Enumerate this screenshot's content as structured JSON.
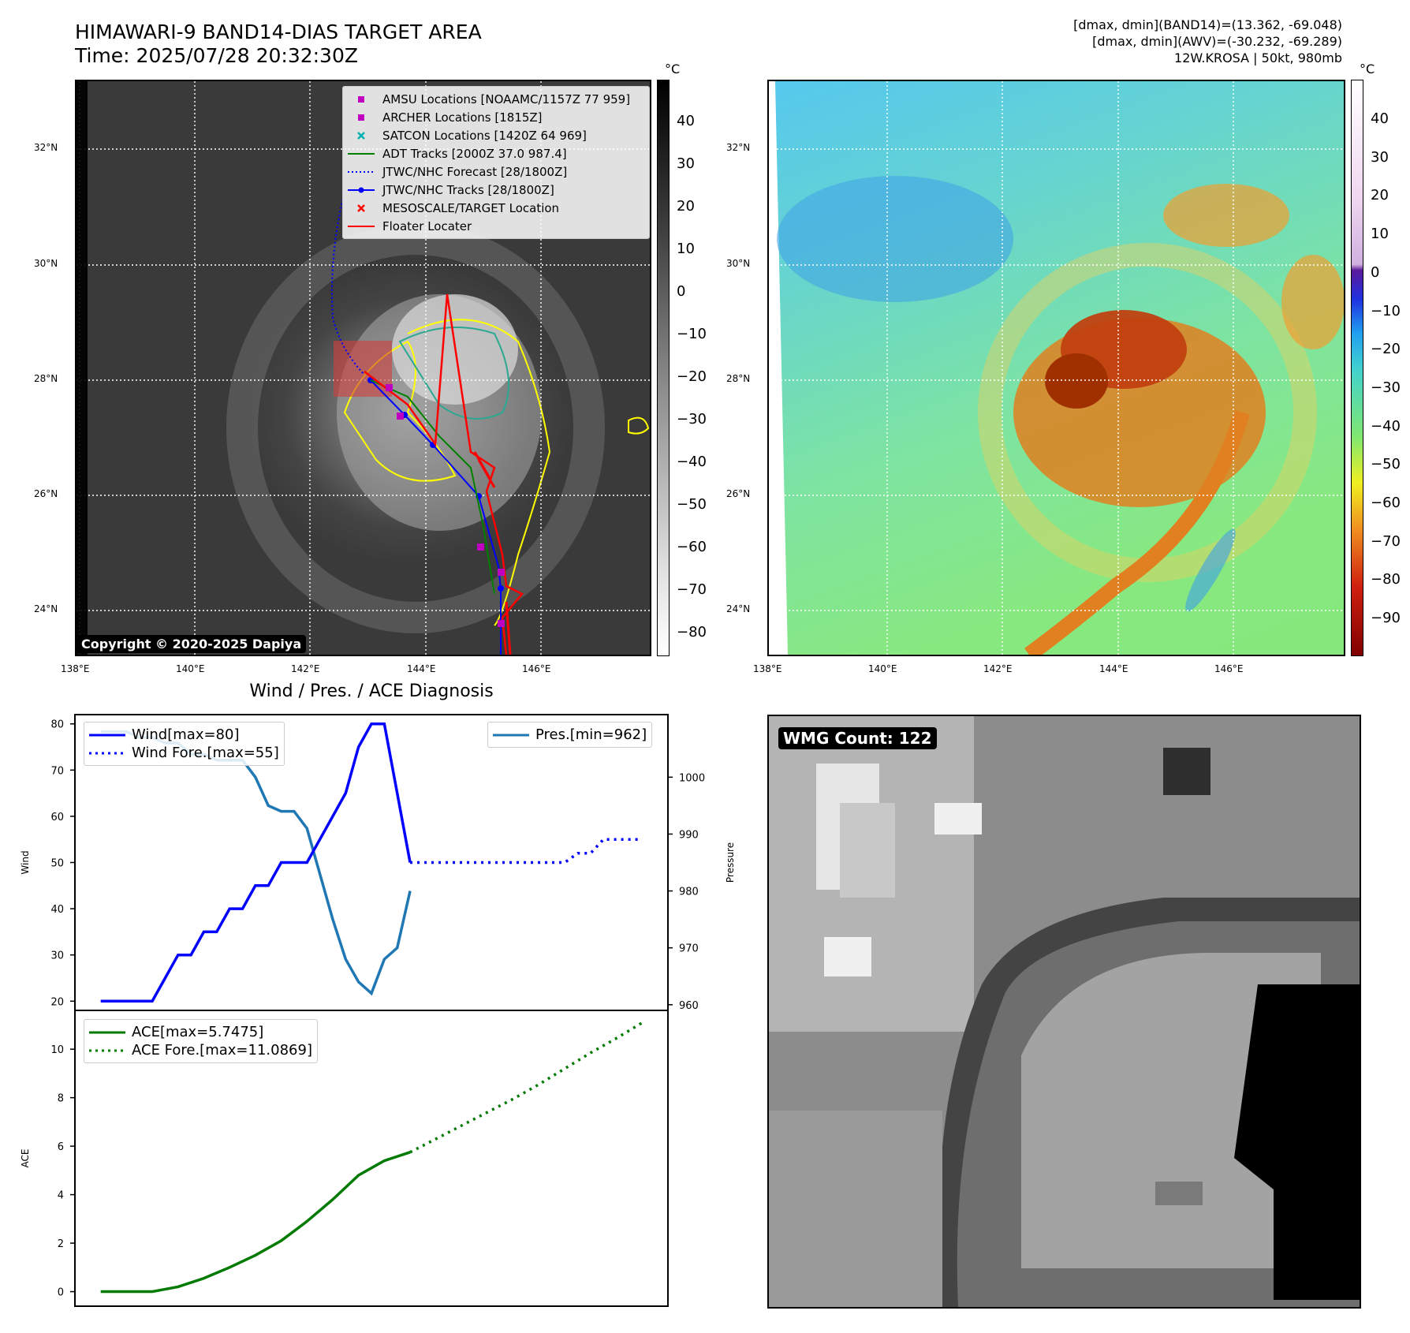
{
  "header": {
    "title_line1": "HIMAWARI-9 BAND14-DIAS TARGET AREA",
    "title_line2": "Time: 2025/07/28 20:32:30Z",
    "info_line1": "[dmax, dmin](BAND14)=(13.362, -69.048)",
    "info_line2": "[dmax, dmin](AWV)=(-30.232, -69.289)",
    "info_line3": "12W.KROSA | 50kt, 980mb"
  },
  "colorbar_unit": "°C",
  "colorbar1_ticks": [
    "40",
    "30",
    "20",
    "10",
    "0",
    "−10",
    "−20",
    "−30",
    "−40",
    "−50",
    "−60",
    "−70",
    "−80"
  ],
  "colorbar2_ticks": [
    "40",
    "30",
    "20",
    "10",
    "0",
    "−10",
    "−20",
    "−30",
    "−40",
    "−50",
    "−60",
    "−70",
    "−80",
    "−90"
  ],
  "map_lat_ticks": [
    "32°N",
    "30°N",
    "28°N",
    "26°N",
    "24°N"
  ],
  "map_lon_ticks": [
    "138°E",
    "140°E",
    "142°E",
    "144°E",
    "146°E"
  ],
  "copyright": "Copyright © 2020-2025 Dapiya",
  "map_legend": [
    {
      "label": "AMSU Locations [NOAAMC/1157Z 77 959]",
      "marker": "square",
      "color": "#c000c0"
    },
    {
      "label": "ARCHER Locations [1815Z]",
      "marker": "square",
      "color": "#c000c0"
    },
    {
      "label": "SATCON Locations [1420Z 64 969]",
      "marker": "x",
      "color": "#00b0b0"
    },
    {
      "label": "ADT Tracks [2000Z 37.0 987.4]",
      "marker": "line",
      "color": "#008000"
    },
    {
      "label": "JTWC/NHC Forecast [28/1800Z]",
      "marker": "dotted",
      "color": "#0000ff"
    },
    {
      "label": "JTWC/NHC Tracks [28/1800Z]",
      "marker": "line-dot",
      "color": "#0000ff"
    },
    {
      "label": "MESOSCALE/TARGET Location",
      "marker": "x",
      "color": "#ff0000"
    },
    {
      "label": "Floater Locater",
      "marker": "line",
      "color": "#ff0000"
    }
  ],
  "diag_title": "Wind / Pres. / ACE Diagnosis",
  "wmg_label": "WMG Count: 122",
  "colors": {
    "wind": "#0000ff",
    "pres": "#1f77b4",
    "ace": "#007a00",
    "jtwc": "#0000ff",
    "adt": "#008000",
    "floater": "#ff0000"
  },
  "chart_data": [
    {
      "type": "line",
      "title": "",
      "ylabel": "Wind",
      "ylim": [
        18,
        82
      ],
      "yticks": [
        20,
        30,
        40,
        50,
        60,
        70,
        80
      ],
      "series": [
        {
          "name": "Wind[max=80]",
          "style": "solid",
          "x": [
            0,
            1,
            2,
            2.5,
            3,
            3.5,
            4,
            4.5,
            5,
            5.5,
            6,
            6.5,
            7,
            7.5,
            8,
            8.5,
            9,
            9.5,
            10,
            10.5,
            11,
            11.5,
            12
          ],
          "values": [
            20,
            20,
            20,
            25,
            30,
            30,
            35,
            35,
            40,
            40,
            45,
            45,
            50,
            50,
            50,
            55,
            60,
            65,
            75,
            80,
            80,
            65,
            50
          ]
        },
        {
          "name": "Wind Fore.[max=55]",
          "style": "dotted",
          "x": [
            12,
            14,
            16,
            18,
            18.5,
            19,
            19.5,
            20,
            21
          ],
          "values": [
            50,
            50,
            50,
            50,
            52,
            52,
            55,
            55,
            55
          ]
        }
      ]
    },
    {
      "type": "line",
      "title": "",
      "ylabel": "Pressure",
      "ylim": [
        959,
        1011
      ],
      "yticks": [
        960,
        970,
        980,
        990,
        1000
      ],
      "series": [
        {
          "name": "Pres.[min=962]",
          "style": "solid",
          "x": [
            0,
            1,
            1.5,
            2,
            2.5,
            3,
            3.5,
            4,
            4.5,
            5,
            5.5,
            6,
            6.5,
            7,
            7.5,
            8,
            8.5,
            9,
            9.5,
            10,
            10.5,
            11,
            11.5,
            12
          ],
          "values": [
            1008,
            1008,
            1007,
            1007,
            1006,
            1006,
            1004,
            1004,
            1003,
            1003,
            1003,
            1000,
            995,
            994,
            994,
            991,
            983,
            975,
            968,
            964,
            962,
            968,
            970,
            980
          ]
        }
      ]
    },
    {
      "type": "line",
      "title": "",
      "ylabel": "ACE",
      "ylim": [
        -0.6,
        11.6
      ],
      "yticks": [
        0,
        2,
        4,
        6,
        8,
        10
      ],
      "series": [
        {
          "name": "ACE[max=5.7475]",
          "style": "solid",
          "x": [
            0,
            1,
            2,
            3,
            4,
            5,
            6,
            7,
            8,
            9,
            10,
            11,
            12
          ],
          "values": [
            0,
            0,
            0,
            0.2,
            0.55,
            1.0,
            1.5,
            2.1,
            2.9,
            3.8,
            4.8,
            5.4,
            5.75
          ]
        },
        {
          "name": "ACE Fore.[max=11.0869]",
          "style": "dotted",
          "x": [
            12,
            13,
            14,
            15,
            16,
            17,
            18,
            19,
            20,
            21
          ],
          "values": [
            5.75,
            6.3,
            6.85,
            7.4,
            7.95,
            8.55,
            9.2,
            9.85,
            10.45,
            11.09
          ]
        }
      ]
    }
  ]
}
